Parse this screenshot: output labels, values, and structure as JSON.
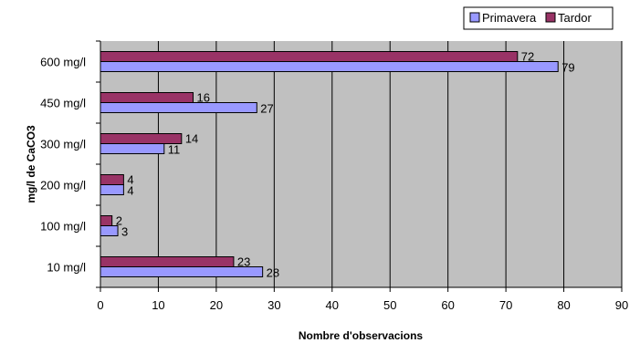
{
  "chart_data": {
    "type": "bar",
    "orientation": "horizontal",
    "categories": [
      "10 mg/l",
      "100 mg/l",
      "200 mg/l",
      "300 mg/l",
      "450 mg/l",
      "600 mg/l"
    ],
    "series": [
      {
        "name": "Primavera",
        "values": [
          28,
          3,
          4,
          11,
          27,
          79
        ],
        "color": "#9999ff"
      },
      {
        "name": "Tardor",
        "values": [
          23,
          2,
          4,
          14,
          16,
          72
        ],
        "color": "#993366"
      }
    ],
    "xlabel": "Nombre d'observacions",
    "ylabel": "mg/l de CaCO3",
    "xlim": [
      0,
      90
    ],
    "xticks": [
      0,
      10,
      20,
      30,
      40,
      50,
      60,
      70,
      80,
      90
    ],
    "grid": "vertical",
    "plot_background": "#c0c0c0",
    "legend_position": "top-right"
  }
}
